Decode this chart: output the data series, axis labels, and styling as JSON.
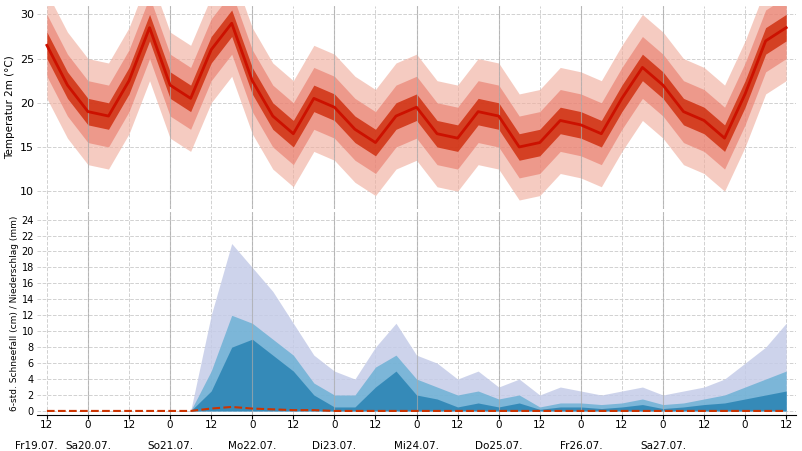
{
  "title_top": "Temperatur 2m (°C)",
  "title_bottom": "6-std. Schneefall (cm) / Niederschlag (mm)",
  "temp_yticks": [
    10,
    15,
    20,
    25,
    30
  ],
  "temp_ylim": [
    8,
    31
  ],
  "precip_yticks": [
    0,
    2,
    4,
    6,
    8,
    10,
    12,
    14,
    16,
    18,
    20,
    22,
    24
  ],
  "precip_ylim": [
    -0.5,
    25
  ],
  "day_names": [
    "Fr19.07.",
    "Sa20.07.",
    "So21.07.",
    "Mo22.07.",
    "Di23.07.",
    "Mi24.07.",
    "Do25.07.",
    "Fr26.07.",
    "Sa27.07."
  ],
  "color_temp_line": "#cc1100",
  "color_temp_inner": "#cc2200",
  "color_temp_mid": "#e87060",
  "color_temp_outer": "#f0b0a0",
  "color_precip_blue_dark": "#2e86b5",
  "color_precip_blue_mid": "#5aaad0",
  "color_precip_light": "#c5cce8",
  "color_snow_dashed": "#cc3300",
  "bg_color": "#ffffff",
  "grid_color": "#cccccc",
  "temp_med": [
    26.5,
    22.0,
    19.0,
    18.5,
    22.5,
    28.5,
    22.0,
    20.5,
    26.0,
    29.0,
    22.5,
    18.5,
    16.5,
    20.5,
    19.5,
    17.0,
    15.5,
    18.5,
    19.5,
    16.5,
    16.0,
    19.0,
    18.5,
    15.0,
    15.5,
    18.0,
    17.5,
    16.5,
    20.5,
    24.0,
    22.0,
    19.0,
    18.0,
    16.0,
    21.0,
    27.0,
    28.5
  ],
  "temp_inner_spread": 1.5,
  "temp_mid_spread": 3.5,
  "temp_outer_spread": 6.0,
  "precip_max": [
    0,
    0,
    0,
    0,
    0,
    0,
    0,
    0,
    12,
    21,
    18,
    15,
    11,
    7,
    5,
    4,
    8,
    11,
    7,
    6,
    4,
    5,
    3,
    4,
    2,
    3,
    2.5,
    2,
    2.5,
    3,
    2,
    2.5,
    3,
    4,
    6,
    8,
    11
  ],
  "precip_med": [
    0,
    0,
    0,
    0,
    0,
    0,
    0,
    0,
    5,
    12,
    11,
    9,
    7,
    3.5,
    2,
    2,
    5.5,
    7,
    4,
    3,
    2,
    2.5,
    1.5,
    2,
    0.5,
    1,
    1,
    0.8,
    1,
    1.5,
    0.8,
    1,
    1.5,
    2,
    3,
    4,
    5
  ],
  "precip_dark": [
    0,
    0,
    0,
    0,
    0,
    0,
    0,
    0,
    2.5,
    8,
    9,
    7,
    5,
    2,
    0.5,
    0.5,
    3,
    5,
    2,
    1.5,
    0.5,
    1,
    0.5,
    1,
    0.2,
    0.5,
    0.5,
    0.3,
    0.5,
    0.8,
    0.3,
    0.5,
    0.8,
    1,
    1.5,
    2,
    2.5
  ],
  "snow": [
    0,
    0,
    0,
    0,
    0,
    0,
    0,
    0,
    0.3,
    0.5,
    0.3,
    0.2,
    0.1,
    0.1,
    0,
    0,
    0,
    0,
    0,
    0,
    0,
    0,
    0,
    0,
    0,
    0,
    0,
    0,
    0,
    0,
    0,
    0,
    0,
    0,
    0,
    0,
    0
  ],
  "n": 37,
  "day_boundaries": [
    2,
    6,
    10,
    14,
    18,
    22,
    26,
    30
  ],
  "day_x": [
    -0.5,
    2,
    6,
    10,
    14,
    18,
    22,
    26,
    30
  ]
}
